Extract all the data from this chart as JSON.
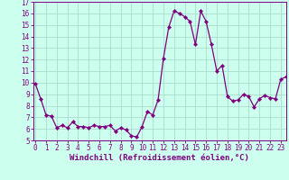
{
  "xlabel": "Windchill (Refroidissement éolien,°C)",
  "x_values": [
    0,
    0.5,
    1,
    1.5,
    2,
    2.5,
    3,
    3.5,
    4,
    4.5,
    5,
    5.5,
    6,
    6.5,
    7,
    7.5,
    8,
    8.5,
    9,
    9.5,
    10,
    10.5,
    11,
    11.5,
    12,
    12.5,
    13,
    13.5,
    14,
    14.5,
    15,
    15.5,
    16,
    16.5,
    17,
    17.5,
    18,
    18.5,
    19,
    19.5,
    20,
    20.5,
    21,
    21.5,
    22,
    22.5,
    23,
    23.5
  ],
  "y_values": [
    9.9,
    8.6,
    7.2,
    7.1,
    6.1,
    6.3,
    6.1,
    6.6,
    6.2,
    6.2,
    6.1,
    6.3,
    6.2,
    6.2,
    6.3,
    5.8,
    6.1,
    5.9,
    5.4,
    5.3,
    6.2,
    7.5,
    7.2,
    8.5,
    12.1,
    14.8,
    16.2,
    16.0,
    15.7,
    15.3,
    13.3,
    16.2,
    15.3,
    13.3,
    11.0,
    11.5,
    8.8,
    8.4,
    8.5,
    9.0,
    8.8,
    7.9,
    8.6,
    8.9,
    8.7,
    8.6,
    10.3,
    10.5
  ],
  "line_color": "#800080",
  "marker_color": "#800080",
  "bg_color": "#ccffee",
  "grid_color": "#aaddcc",
  "axis_color": "#800080",
  "ylim": [
    5,
    17
  ],
  "xlim": [
    -0.2,
    23.5
  ],
  "yticks": [
    5,
    6,
    7,
    8,
    9,
    10,
    11,
    12,
    13,
    14,
    15,
    16,
    17
  ],
  "xticks": [
    0,
    1,
    2,
    3,
    4,
    5,
    6,
    7,
    8,
    9,
    10,
    11,
    12,
    13,
    14,
    15,
    16,
    17,
    18,
    19,
    20,
    21,
    22,
    23
  ],
  "marker_size": 2.2,
  "line_width": 0.9,
  "tick_fontsize": 5.5,
  "xlabel_fontsize": 6.5
}
